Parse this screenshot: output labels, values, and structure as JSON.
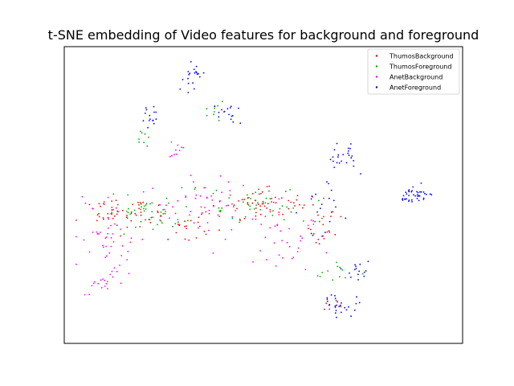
{
  "colors": {
    "ThumosBackground": "#ff0000",
    "ThumosForeground": "#00aa00",
    "AnetBackground": "#ff00ff",
    "AnetForeground": "#0000ff"
  },
  "chart_data": {
    "type": "scatter",
    "title": "t-SNE embedding of Video features for background and foreground",
    "xlabel": "",
    "ylabel": "",
    "xlim": [
      0,
      100
    ],
    "ylim": [
      0,
      100
    ],
    "ticks_shown": false,
    "grid": false,
    "legend_position": "top-right",
    "legend": [
      "ThumosBackground",
      "ThumosForeground",
      "AnetBackground",
      "AnetForeground"
    ],
    "clusters": [
      {
        "series": "ThumosBackground",
        "center": [
          15,
          43
        ],
        "spread": [
          10,
          4
        ],
        "count": 55
      },
      {
        "series": "ThumosBackground",
        "center": [
          52,
          47
        ],
        "spread": [
          12,
          5
        ],
        "count": 60
      },
      {
        "series": "ThumosBackground",
        "center": [
          64,
          36
        ],
        "spread": [
          4,
          6
        ],
        "count": 15
      },
      {
        "series": "ThumosBackground",
        "center": [
          68,
          12
        ],
        "spread": [
          4,
          3
        ],
        "count": 8
      },
      {
        "series": "ThumosBackground",
        "center": [
          32,
          40
        ],
        "spread": [
          6,
          5
        ],
        "count": 20
      },
      {
        "series": "ThumosForeground",
        "center": [
          20,
          44
        ],
        "spread": [
          8,
          4
        ],
        "count": 45
      },
      {
        "series": "ThumosForeground",
        "center": [
          45,
          46
        ],
        "spread": [
          14,
          5
        ],
        "count": 50
      },
      {
        "series": "ThumosForeground",
        "center": [
          38,
          79
        ],
        "spread": [
          3,
          4
        ],
        "count": 10
      },
      {
        "series": "ThumosForeground",
        "center": [
          20,
          70
        ],
        "spread": [
          3,
          3
        ],
        "count": 8
      },
      {
        "series": "ThumosForeground",
        "center": [
          67,
          24
        ],
        "spread": [
          6,
          4
        ],
        "count": 12
      },
      {
        "series": "AnetBackground",
        "center": [
          10,
          35
        ],
        "spread": [
          6,
          12
        ],
        "count": 45
      },
      {
        "series": "AnetBackground",
        "center": [
          35,
          48
        ],
        "spread": [
          12,
          8
        ],
        "count": 55
      },
      {
        "series": "AnetBackground",
        "center": [
          55,
          35
        ],
        "spread": [
          10,
          8
        ],
        "count": 35
      },
      {
        "series": "AnetBackground",
        "center": [
          28,
          66
        ],
        "spread": [
          3,
          3
        ],
        "count": 10
      },
      {
        "series": "AnetBackground",
        "center": [
          10,
          20
        ],
        "spread": [
          3,
          4
        ],
        "count": 15
      },
      {
        "series": "AnetForeground",
        "center": [
          32,
          91
        ],
        "spread": [
          2,
          4
        ],
        "count": 20
      },
      {
        "series": "AnetForeground",
        "center": [
          41,
          77
        ],
        "spread": [
          3,
          3
        ],
        "count": 15
      },
      {
        "series": "AnetForeground",
        "center": [
          21,
          76
        ],
        "spread": [
          2,
          4
        ],
        "count": 15
      },
      {
        "series": "AnetForeground",
        "center": [
          71,
          62
        ],
        "spread": [
          3,
          6
        ],
        "count": 25
      },
      {
        "series": "AnetForeground",
        "center": [
          69,
          12
        ],
        "spread": [
          4,
          5
        ],
        "count": 25
      },
      {
        "series": "AnetForeground",
        "center": [
          73,
          25
        ],
        "spread": [
          4,
          4
        ],
        "count": 15
      },
      {
        "series": "AnetForeground",
        "center": [
          88,
          50
        ],
        "spread": [
          4,
          2
        ],
        "count": 40
      },
      {
        "series": "AnetForeground",
        "center": [
          66,
          44
        ],
        "spread": [
          5,
          8
        ],
        "count": 20
      }
    ]
  }
}
